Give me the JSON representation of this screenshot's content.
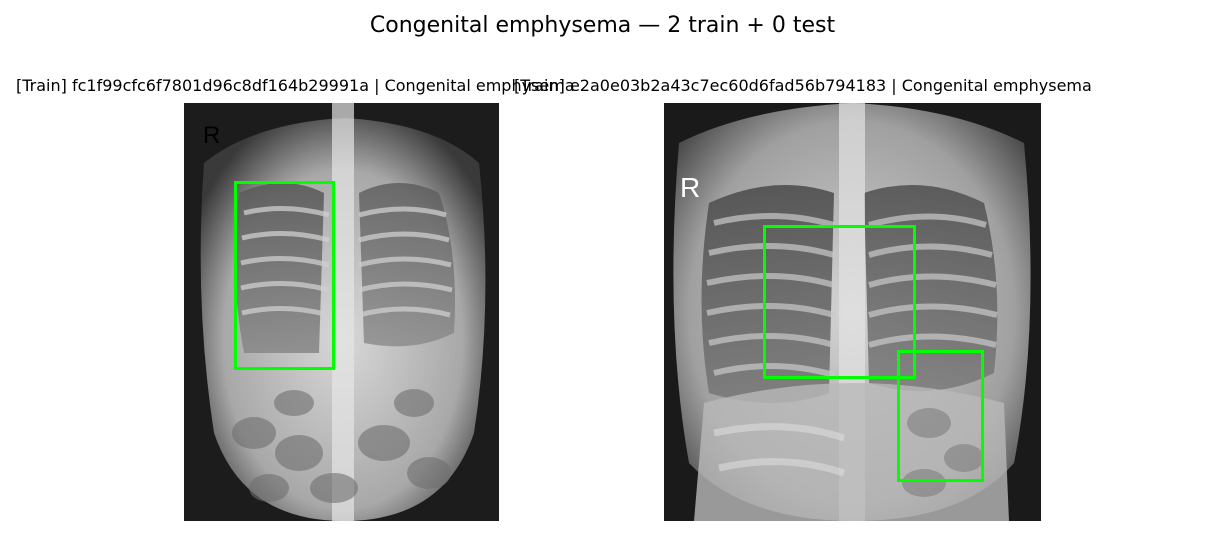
{
  "figure": {
    "title": "Congenital emphysema — 2 train + 0 test"
  },
  "panels": [
    {
      "title": "[Train] fc1f99cfc6f7801d96c8df164b29991a | Congenital emphysema",
      "marker": "R",
      "box_color": "#00ff00",
      "image_type": "chest-xray"
    },
    {
      "title": "[Train] e2a0e03b2a43c7ec60d6fad56b794183 | Congenital emphysema",
      "marker": "R",
      "box_color": "#00ff00",
      "image_type": "chest-xray"
    }
  ]
}
